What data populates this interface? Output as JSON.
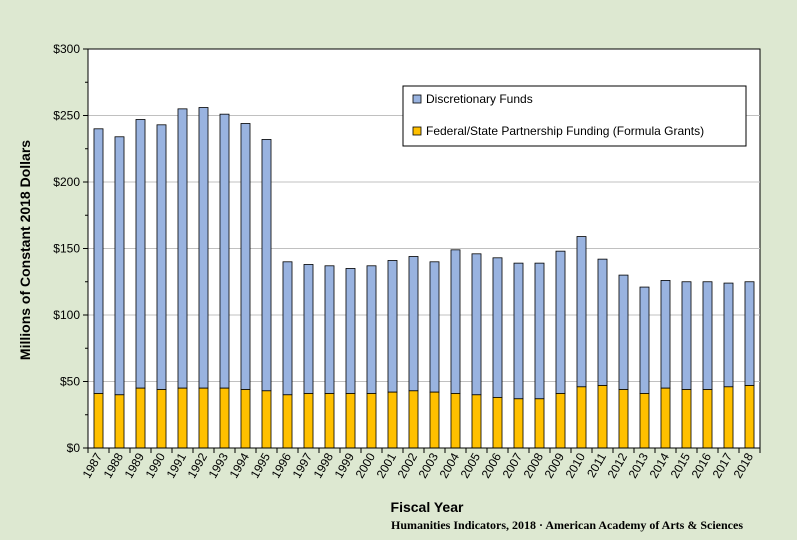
{
  "chart_data": {
    "type": "bar",
    "stacked": true,
    "xlabel": "Fiscal Year",
    "ylabel": "Millions of Constant 2018 Dollars",
    "ylim": [
      0,
      300
    ],
    "yticks": [
      "$0",
      "$50",
      "$100",
      "$150",
      "$200",
      "$250",
      "$300"
    ],
    "ytick_values": [
      0,
      50,
      100,
      150,
      200,
      250,
      300
    ],
    "grid": true,
    "legend_position": "top-right",
    "categories": [
      "1987",
      "1988",
      "1989",
      "1990",
      "1991",
      "1992",
      "1993",
      "1994",
      "1995",
      "1996",
      "1997",
      "1998",
      "1999",
      "2000",
      "2001",
      "2002",
      "2003",
      "2004",
      "2005",
      "2006",
      "2007",
      "2008",
      "2009",
      "2010",
      "2011",
      "2012",
      "2013",
      "2014",
      "2015",
      "2016",
      "2017",
      "2018"
    ],
    "series": [
      {
        "name": "Federal/State Partnership Funding (Formula Grants)",
        "color": "#ffc000",
        "values": [
          41,
          40,
          45,
          44,
          45,
          45,
          45,
          44,
          43,
          40,
          41,
          41,
          41,
          41,
          42,
          43,
          42,
          41,
          40,
          38,
          37,
          37,
          41,
          46,
          47,
          44,
          41,
          45,
          44,
          44,
          46,
          47
        ]
      },
      {
        "name": "Discretionary Funds",
        "color": "#99b3e0",
        "values": [
          199,
          194,
          202,
          199,
          210,
          211,
          206,
          200,
          189,
          100,
          97,
          96,
          94,
          96,
          99,
          101,
          98,
          108,
          106,
          105,
          102,
          102,
          107,
          113,
          95,
          86,
          80,
          81,
          81,
          81,
          78,
          78
        ]
      }
    ],
    "legend": [
      "Discretionary Funds",
      "Federal/State Partnership Funding (Formula Grants)"
    ]
  },
  "credit": "Humanities Indicators, 2018 · American Academy of Arts & Sciences"
}
